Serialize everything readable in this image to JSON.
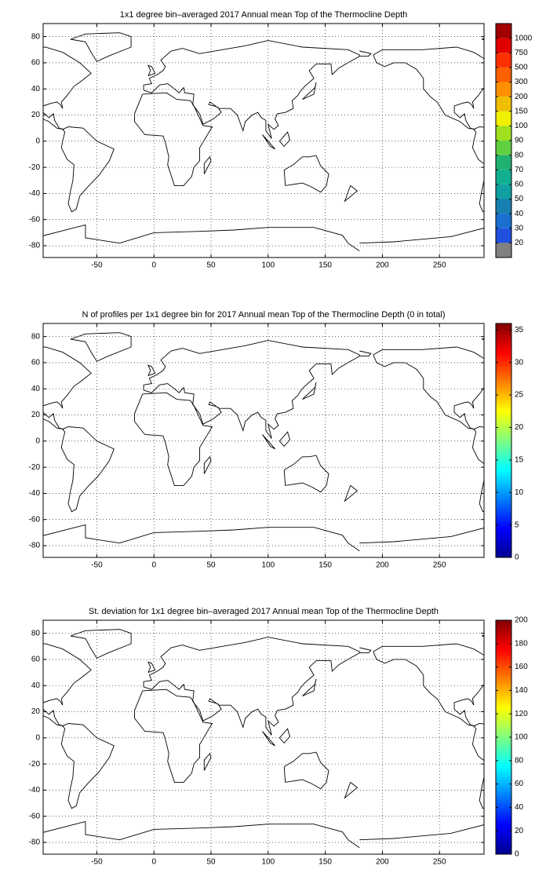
{
  "panels": [
    {
      "title": "1x1 degree bin–averaged 2017 Annual mean Top of the Thermocline Depth",
      "xlim": [
        -97,
        289
      ],
      "ylim": [
        -89,
        90
      ],
      "xticks": [
        -50,
        0,
        50,
        100,
        150,
        200,
        250
      ],
      "yticks": [
        -80,
        -60,
        -40,
        -20,
        0,
        20,
        40,
        60,
        80
      ],
      "grid": true,
      "colorbar": {
        "type": "discrete",
        "ticks": [
          20,
          30,
          40,
          50,
          60,
          70,
          80,
          90,
          100,
          150,
          200,
          300,
          500,
          750,
          1000
        ],
        "colors": [
          "#808080",
          "#2050e0",
          "#1a6fd0",
          "#1880b0",
          "#10a0a0",
          "#10b090",
          "#20b070",
          "#60d040",
          "#a0e020",
          "#f0f000",
          "#f0c000",
          "#ff9000",
          "#ff6000",
          "#ff3000",
          "#e00000",
          "#a00000"
        ]
      }
    },
    {
      "title": "N of profiles per 1x1 degree bin for 2017 Annual mean Top of the Thermocline Depth  (0 in total)",
      "xlim": [
        -97,
        289
      ],
      "ylim": [
        -89,
        90
      ],
      "xticks": [
        -50,
        0,
        50,
        100,
        150,
        200,
        250
      ],
      "yticks": [
        -80,
        -60,
        -40,
        -20,
        0,
        20,
        40,
        60,
        80
      ],
      "grid": true,
      "colorbar": {
        "type": "continuous",
        "colormap": "jet",
        "lim": [
          0,
          36
        ],
        "ticks": [
          0,
          5,
          10,
          15,
          20,
          25,
          30,
          35
        ]
      }
    },
    {
      "title": "St. deviation for 1x1 degree bin–averaged 2017 Annual mean Top of the Thermocline Depth",
      "xlim": [
        -97,
        289
      ],
      "ylim": [
        -89,
        90
      ],
      "xticks": [
        -50,
        0,
        50,
        100,
        150,
        200,
        250
      ],
      "yticks": [
        -80,
        -60,
        -40,
        -20,
        0,
        20,
        40,
        60,
        80
      ],
      "grid": true,
      "colorbar": {
        "type": "continuous",
        "colormap": "jet",
        "lim": [
          0,
          200
        ],
        "ticks": [
          0,
          20,
          40,
          60,
          80,
          100,
          120,
          140,
          160,
          180,
          200
        ]
      }
    }
  ]
}
